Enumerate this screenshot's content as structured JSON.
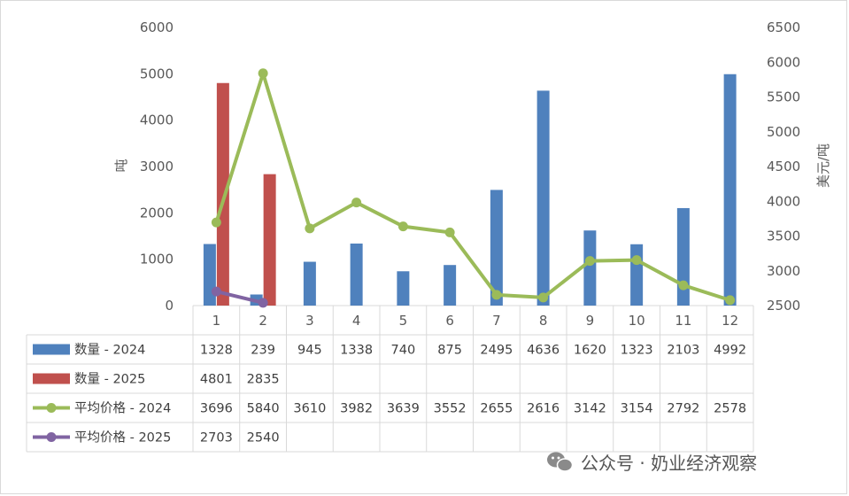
{
  "chart_data": {
    "type": "bar",
    "categories": [
      "1",
      "2",
      "3",
      "4",
      "5",
      "6",
      "7",
      "8",
      "9",
      "10",
      "11",
      "12"
    ],
    "ylabel": "吨",
    "y2label": "美元/吨",
    "ylim": [
      0,
      6000
    ],
    "y2lim": [
      2500,
      6500
    ],
    "yticks": [
      "0",
      "1000",
      "2000",
      "3000",
      "4000",
      "5000",
      "6000"
    ],
    "y2ticks": [
      "2500",
      "3000",
      "3500",
      "4000",
      "4500",
      "5000",
      "5500",
      "6000",
      "6500"
    ],
    "grid": false,
    "legend": "data-table",
    "series": [
      {
        "name": "数量 - 2024",
        "type": "bar",
        "axis": "left",
        "color": "#4f81bd",
        "values": [
          1328,
          239,
          945,
          1338,
          740,
          875,
          2495,
          4636,
          1620,
          1323,
          2103,
          4992
        ]
      },
      {
        "name": "数量 - 2025",
        "type": "bar",
        "axis": "left",
        "color": "#c0504d",
        "values": [
          4801,
          2835,
          null,
          null,
          null,
          null,
          null,
          null,
          null,
          null,
          null,
          null
        ]
      },
      {
        "name": "平均价格 - 2024",
        "type": "line",
        "axis": "right",
        "color": "#9bbb59",
        "values": [
          3696,
          5840,
          3610,
          3982,
          3639,
          3552,
          2655,
          2616,
          3142,
          3154,
          2792,
          2578
        ]
      },
      {
        "name": "平均价格 - 2025",
        "type": "line",
        "axis": "right",
        "color": "#8064a2",
        "values": [
          2703,
          2540,
          null,
          null,
          null,
          null,
          null,
          null,
          null,
          null,
          null,
          null
        ]
      }
    ]
  },
  "watermark": {
    "text": "公众号 · 奶业经济观察",
    "icon": "wechat-icon"
  }
}
